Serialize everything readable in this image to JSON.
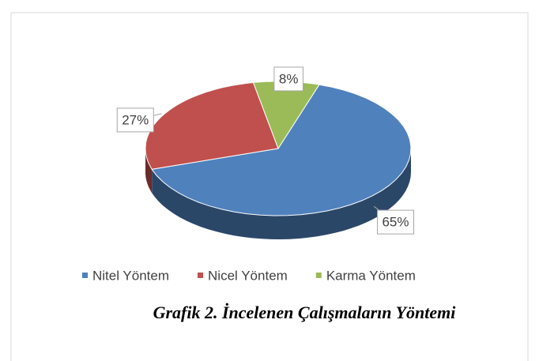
{
  "chart_data": {
    "type": "pie",
    "title": "Grafik 2. İncelenen Çalışmaların Yöntemi",
    "categories": [
      "Nitel Yöntem",
      "Nicel Yöntem",
      "Karma Yöntem"
    ],
    "values": [
      65,
      27,
      8
    ],
    "value_labels": [
      "65%",
      "27%",
      "8%"
    ],
    "colors": [
      "#4f81bd",
      "#c0504d",
      "#9bbb59"
    ],
    "legend": "bottom"
  }
}
